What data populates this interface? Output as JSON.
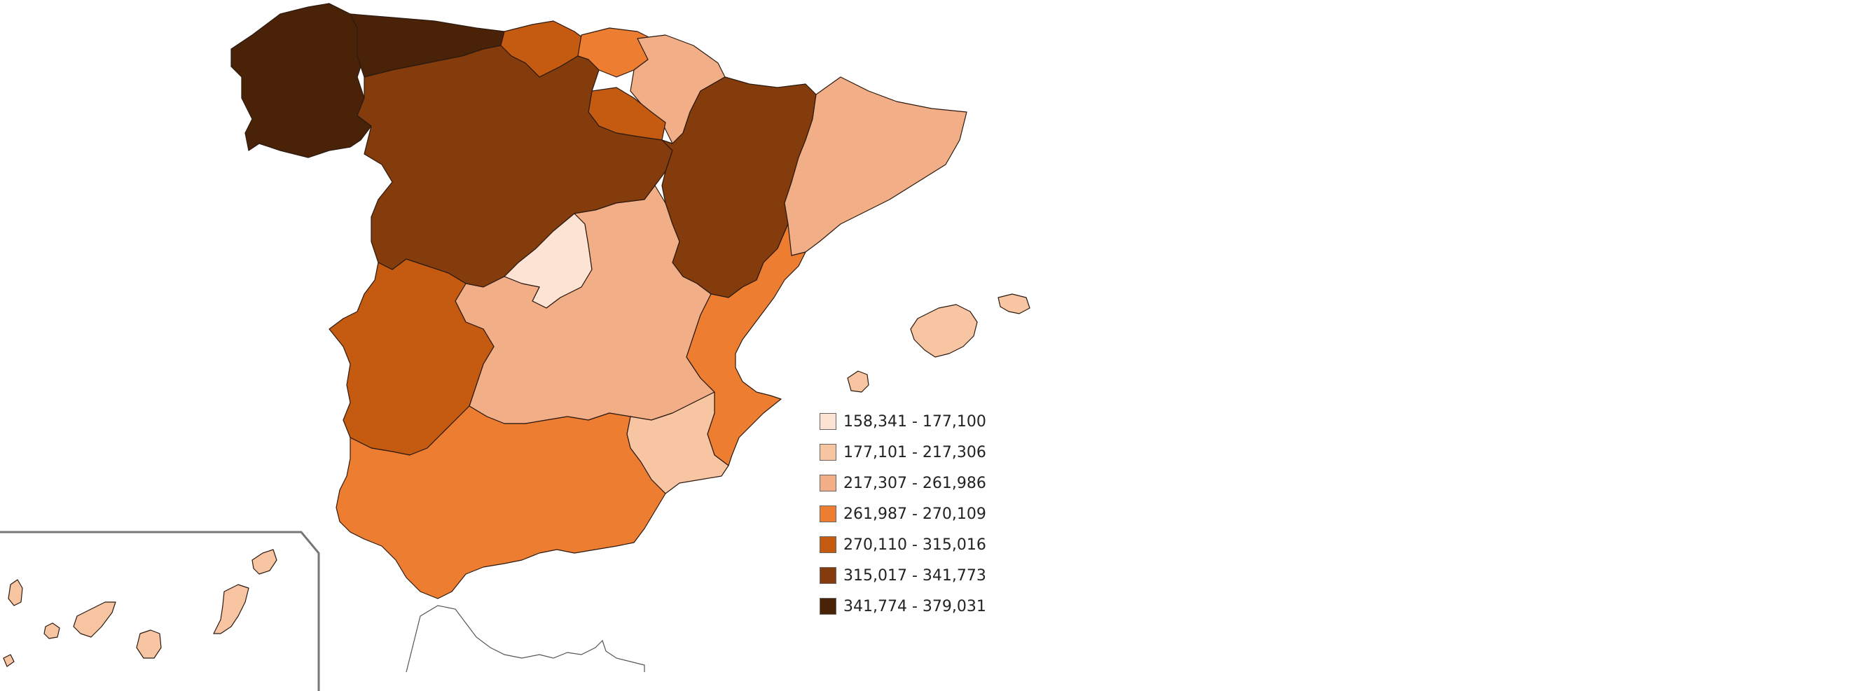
{
  "map": {
    "colors": {
      "c1": "#fde3d3",
      "c2": "#f8c5a3",
      "c3": "#f2ae86",
      "c4": "#ed7d31",
      "c5": "#c55a11",
      "c6": "#843c0c",
      "c7": "#4a2208",
      "outline": "#ffffff"
    },
    "regions": [
      {
        "name": "galicia",
        "class": "c7"
      },
      {
        "name": "asturias",
        "class": "c7"
      },
      {
        "name": "cantabria",
        "class": "c5"
      },
      {
        "name": "pais-vasco",
        "class": "c4"
      },
      {
        "name": "navarra",
        "class": "c3"
      },
      {
        "name": "la-rioja",
        "class": "c5"
      },
      {
        "name": "castilla-y-leon",
        "class": "c6"
      },
      {
        "name": "aragon",
        "class": "c6"
      },
      {
        "name": "cataluna",
        "class": "c3"
      },
      {
        "name": "madrid",
        "class": "c1"
      },
      {
        "name": "castilla-la-mancha",
        "class": "c3"
      },
      {
        "name": "extremadura",
        "class": "c5"
      },
      {
        "name": "comunidad-valenciana",
        "class": "c4"
      },
      {
        "name": "murcia",
        "class": "c2"
      },
      {
        "name": "andalucia",
        "class": "c4"
      },
      {
        "name": "baleares",
        "class": "c2"
      },
      {
        "name": "canarias",
        "class": "c2"
      }
    ]
  },
  "legend": {
    "items": [
      {
        "label": "158,341 - 177,100",
        "color": "#fde3d3"
      },
      {
        "label": "177,101 - 217,306",
        "color": "#f8c5a3"
      },
      {
        "label": "217,307 - 261,986",
        "color": "#f2ae86"
      },
      {
        "label": "261,987 - 270,109",
        "color": "#ed7d31"
      },
      {
        "label": "270,110 - 315,016",
        "color": "#c55a11"
      },
      {
        "label": "315,017 - 341,773",
        "color": "#843c0c"
      },
      {
        "label": "341,774 - 379,031",
        "color": "#4a2208"
      }
    ]
  }
}
